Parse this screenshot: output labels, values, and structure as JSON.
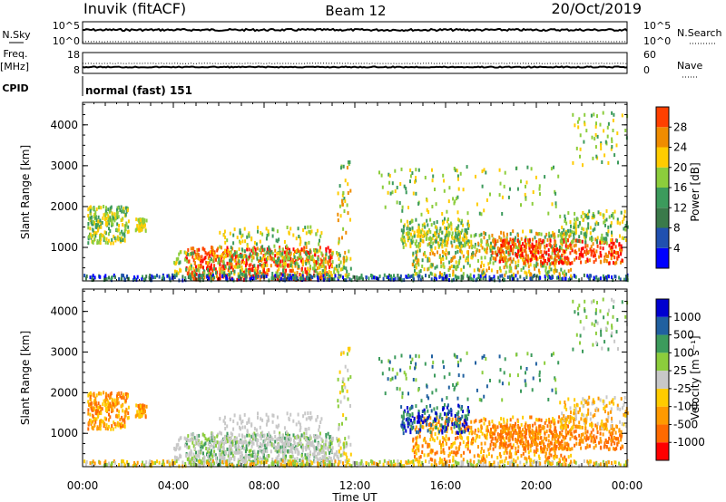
{
  "header": {
    "station": "Inuvik (fitACF)",
    "beam": "Beam 12",
    "date": "20/Oct/2019"
  },
  "colors": {
    "power": [
      "#0000ff",
      "#2050b0",
      "#3a7a4a",
      "#3c9b5c",
      "#8ccd3c",
      "#ffcc00",
      "#f08c00",
      "#ff4000",
      "#ff0000"
    ],
    "velocity": [
      "#ff0000",
      "#ff6a00",
      "#ff9a00",
      "#ffcc00",
      "#c8c8c8",
      "#8ccd3c",
      "#3c9b5c",
      "#2060a0",
      "#0000d0"
    ]
  },
  "chart_data": [
    {
      "type": "line",
      "name": "nsky-nsearch",
      "left_label": "N.Sky",
      "right_label": "N.Search",
      "y_ticks_left": [
        "10^5",
        "10^0"
      ],
      "y_ticks_right": [
        "10^5",
        "10^0"
      ],
      "xlim": [
        "00:00",
        "24:00"
      ]
    },
    {
      "type": "line",
      "name": "freq-nave",
      "left_label": "Freq.",
      "left_unit": "[MHz]",
      "right_label": "Nave",
      "y_ticks_left": [
        "18",
        "8"
      ],
      "y_ticks_right": [
        "60",
        "0"
      ],
      "xlim": [
        "00:00",
        "24:00"
      ]
    },
    {
      "type": "table",
      "name": "cpid",
      "label": "CPID",
      "value": "normal (fast) 151"
    },
    {
      "type": "heatmap",
      "name": "power",
      "ylabel": "Slant Range [km]",
      "colorbar_label": "Power [dB]",
      "y_ticks": [
        "1000",
        "2000",
        "3000",
        "4000"
      ],
      "ylim": [
        180,
        4550
      ],
      "colorbar_ticks": [
        "4",
        "8",
        "12",
        "16",
        "20",
        "24",
        "28"
      ],
      "clim": [
        0,
        30
      ]
    },
    {
      "type": "heatmap",
      "name": "velocity",
      "ylabel": "Slant Range [km]",
      "colorbar_label": "Velocity [m s⁻¹]",
      "y_ticks": [
        "1000",
        "2000",
        "3000",
        "4000"
      ],
      "ylim": [
        180,
        4550
      ],
      "colorbar_ticks": [
        "-1000",
        "-500",
        "-100",
        "-25",
        "25",
        "100",
        "500",
        "1000"
      ],
      "x_ticks": [
        "00:00",
        "04:00",
        "08:00",
        "12:00",
        "16:00",
        "20:00",
        "00:00"
      ],
      "xlabel": "Time UT"
    }
  ]
}
